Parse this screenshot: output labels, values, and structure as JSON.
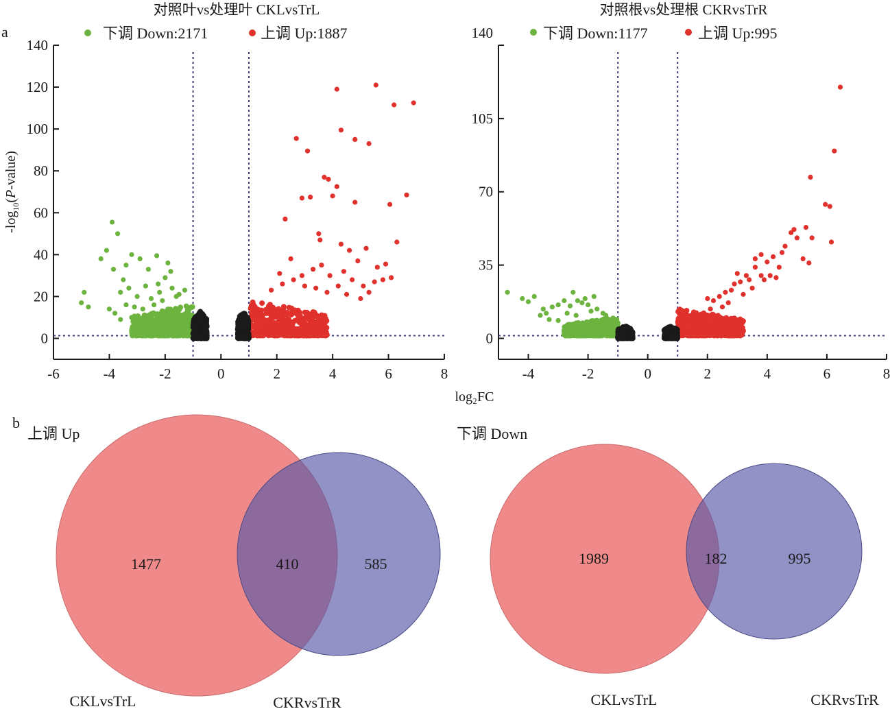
{
  "panel_labels": {
    "a": "a",
    "b": "b"
  },
  "shared_xlabel": "log₂FC",
  "shared_ylabel": "-log₁₀(P-value)",
  "colors": {
    "down": "#6db33f",
    "up": "#e0312d",
    "ns": "#1a1a1a",
    "threshold": "#3b3f7a",
    "venn_left": "#f08a8a",
    "venn_right": "#8e8cc0",
    "venn_overlap": "#885a9a"
  },
  "chart_data": [
    {
      "type": "scatter",
      "title": "对照叶vs处理叶 CKLvsTrL",
      "xlabel": "log₂FC",
      "ylabel": "-log₁₀(P-value)",
      "xlim": [
        -6,
        8
      ],
      "ylim": [
        -10,
        140
      ],
      "xticks": [
        -6,
        -4,
        -2,
        0,
        2,
        4,
        6,
        8
      ],
      "yticks": [
        0,
        20,
        40,
        60,
        80,
        100,
        120,
        140
      ],
      "thresholds": {
        "x": [
          -1,
          1
        ],
        "y": 1.3
      },
      "legend": [
        {
          "label": "下调 Down:2171",
          "series": "down"
        },
        {
          "label": "上调 Up:1887",
          "series": "up"
        }
      ],
      "legend_position": "top",
      "counts": {
        "down": 2171,
        "up": 1887
      },
      "series": [
        {
          "name": "down",
          "points": [
            [
              -4.9,
              22
            ],
            [
              -5,
              17
            ],
            [
              -4.75,
              15
            ],
            [
              -4.3,
              38
            ],
            [
              -4.1,
              42
            ],
            [
              -3.9,
              55.5
            ],
            [
              -3.7,
              50
            ],
            [
              -3.85,
              33
            ],
            [
              -3.4,
              35
            ],
            [
              -3.5,
              28
            ],
            [
              -3.2,
              40
            ],
            [
              -2.9,
              38
            ],
            [
              -2.6,
              33
            ],
            [
              -2.3,
              39.5
            ],
            [
              -2.25,
              26
            ],
            [
              -1.9,
              36
            ],
            [
              -1.8,
              32
            ],
            [
              -3.6,
              22
            ],
            [
              -3.3,
              24
            ],
            [
              -3.0,
              20
            ],
            [
              -2.7,
              25
            ],
            [
              -2.5,
              19
            ],
            [
              -2.2,
              22
            ],
            [
              -2.0,
              29
            ],
            [
              -1.75,
              24
            ],
            [
              -1.6,
              20
            ],
            [
              -3.8,
              12
            ],
            [
              -3.4,
              16
            ],
            [
              -3.1,
              15
            ],
            [
              -2.8,
              14
            ],
            [
              -4.0,
              14
            ],
            [
              -3.6,
              9
            ],
            [
              -3.2,
              10
            ],
            [
              -2.9,
              9
            ],
            [
              -2.6,
              11
            ],
            [
              -2.4,
              16
            ],
            [
              -2.1,
              18
            ],
            [
              -1.9,
              14
            ],
            [
              -1.5,
              21
            ],
            [
              -1.3,
              23
            ]
          ],
          "cloud": {
            "xmin": -3.2,
            "xmax": -1.0,
            "ymin": 1.3,
            "ymax": 16
          }
        },
        {
          "name": "up",
          "points": [
            [
              4.15,
              119
            ],
            [
              5.55,
              121
            ],
            [
              6.2,
              111.5
            ],
            [
              6.9,
              112.5
            ],
            [
              4.3,
              99.5
            ],
            [
              4.8,
              95
            ],
            [
              5.3,
              93
            ],
            [
              2.7,
              95.5
            ],
            [
              3.1,
              89.5
            ],
            [
              3.7,
              77
            ],
            [
              3.85,
              76
            ],
            [
              4.15,
              72.5
            ],
            [
              3.2,
              67.5
            ],
            [
              2.9,
              67
            ],
            [
              4.0,
              68
            ],
            [
              4.8,
              65
            ],
            [
              6.05,
              64
            ],
            [
              6.65,
              68.5
            ],
            [
              2.3,
              57
            ],
            [
              3.5,
              50
            ],
            [
              3.55,
              47
            ],
            [
              4.3,
              45
            ],
            [
              5.2,
              43
            ],
            [
              6.3,
              46
            ],
            [
              5.9,
              35.5
            ],
            [
              4.6,
              42
            ],
            [
              4.9,
              37
            ],
            [
              5.6,
              34
            ],
            [
              6.1,
              29
            ],
            [
              5.8,
              28
            ],
            [
              2.5,
              38
            ],
            [
              2.9,
              30
            ],
            [
              3.3,
              33
            ],
            [
              3.6,
              35
            ],
            [
              3.9,
              30
            ],
            [
              4.4,
              32
            ],
            [
              4.7,
              28
            ],
            [
              5.1,
              25
            ],
            [
              5.5,
              27
            ],
            [
              2.1,
              31
            ],
            [
              2.2,
              26
            ],
            [
              2.6,
              28
            ],
            [
              3.0,
              25
            ],
            [
              3.4,
              24
            ],
            [
              3.8,
              22
            ],
            [
              4.2,
              25
            ],
            [
              4.5,
              21
            ],
            [
              5.0,
              19
            ],
            [
              5.3,
              22
            ],
            [
              1.8,
              23
            ]
          ],
          "cloud": {
            "xmin": 1.0,
            "xmax": 3.8,
            "ymin": 1.3,
            "ymax": 18
          }
        },
        {
          "name": "ns",
          "clouds": [
            {
              "xmin": -1.0,
              "xmax": -0.5,
              "ymin": 0,
              "ymax": 13
            },
            {
              "xmin": 0.6,
              "xmax": 1.0,
              "ymin": 0,
              "ymax": 13
            }
          ]
        }
      ]
    },
    {
      "type": "scatter",
      "title": "对照根vs处理根 CKRvsTrR",
      "xlabel": "log₂FC",
      "ylabel": "",
      "xlim": [
        -5,
        8
      ],
      "ylim": [
        -10,
        140
      ],
      "xticks": [
        -4,
        -2,
        0,
        2,
        4,
        6,
        8
      ],
      "yticks": [
        0,
        35,
        70,
        105,
        140
      ],
      "thresholds": {
        "x": [
          -1,
          1
        ],
        "y": 1.3
      },
      "legend": [
        {
          "label": "下调 Down:1177",
          "series": "down"
        },
        {
          "label": "上调 Up:995",
          "series": "up"
        }
      ],
      "legend_position": "top",
      "counts": {
        "down": 1177,
        "up": 995
      },
      "series": [
        {
          "name": "down",
          "points": [
            [
              -4.7,
              22
            ],
            [
              -4.2,
              19
            ],
            [
              -4.0,
              17.5
            ],
            [
              -3.8,
              20
            ],
            [
              -3.5,
              14
            ],
            [
              -3.4,
              12
            ],
            [
              -3.2,
              15
            ],
            [
              -3.0,
              16
            ],
            [
              -2.8,
              18
            ],
            [
              -2.6,
              15.5
            ],
            [
              -2.5,
              22
            ],
            [
              -2.35,
              18
            ],
            [
              -2.2,
              17
            ],
            [
              -2.1,
              19
            ],
            [
              -2.0,
              16
            ],
            [
              -1.8,
              20
            ],
            [
              -1.7,
              14
            ],
            [
              -1.5,
              12
            ],
            [
              -1.4,
              11
            ],
            [
              -3.6,
              11
            ],
            [
              -3.3,
              9
            ],
            [
              -3.0,
              8.5
            ],
            [
              -2.7,
              12
            ],
            [
              -2.4,
              11
            ],
            [
              -1.9,
              13
            ]
          ],
          "cloud": {
            "xmin": -2.8,
            "xmax": -1.0,
            "ymin": 1.3,
            "ymax": 10
          }
        },
        {
          "name": "up",
          "points": [
            [
              6.45,
              120
            ],
            [
              6.25,
              89.5
            ],
            [
              5.45,
              77
            ],
            [
              5.95,
              64
            ],
            [
              6.1,
              63
            ],
            [
              5.3,
              53
            ],
            [
              4.9,
              52
            ],
            [
              5.0,
              48
            ],
            [
              4.8,
              50.5
            ],
            [
              5.5,
              48
            ],
            [
              6.15,
              46
            ],
            [
              4.6,
              44
            ],
            [
              4.5,
              41
            ],
            [
              4.2,
              39
            ],
            [
              4.0,
              36.5
            ],
            [
              3.8,
              40
            ],
            [
              3.6,
              38
            ],
            [
              3.6,
              34
            ],
            [
              3.3,
              30
            ],
            [
              3.4,
              28
            ],
            [
              3.1,
              27
            ],
            [
              2.9,
              26
            ],
            [
              2.8,
              23
            ],
            [
              2.6,
              22
            ],
            [
              2.4,
              20
            ],
            [
              2.2,
              18
            ],
            [
              2.0,
              19
            ],
            [
              3.0,
              31
            ],
            [
              3.8,
              30
            ],
            [
              4.4,
              34
            ],
            [
              2.5,
              15
            ],
            [
              2.7,
              17
            ],
            [
              3.2,
              21
            ],
            [
              3.5,
              24
            ],
            [
              3.9,
              28
            ],
            [
              4.1,
              30
            ],
            [
              4.3,
              29
            ],
            [
              5.2,
              38
            ],
            [
              5.4,
              36
            ],
            [
              2.1,
              14
            ]
          ],
          "cloud": {
            "xmin": 1.0,
            "xmax": 3.2,
            "ymin": 1.3,
            "ymax": 14
          }
        },
        {
          "name": "ns",
          "clouds": [
            {
              "xmin": -1.0,
              "xmax": -0.5,
              "ymin": 0,
              "ymax": 6
            },
            {
              "xmin": 0.55,
              "xmax": 1.0,
              "ymin": 0,
              "ymax": 6
            }
          ]
        }
      ]
    },
    {
      "type": "venn",
      "title": "上调 Up",
      "sets": [
        "CKLvsTrL",
        "CKRvsTrR"
      ],
      "values": {
        "left_only": 1477,
        "overlap": 410,
        "right_only": 585
      }
    },
    {
      "type": "venn",
      "title": "下调 Down",
      "sets": [
        "CKLvsTrL",
        "CKRvsTrR"
      ],
      "values": {
        "left_only": 1989,
        "overlap": 182,
        "right_only": 995
      }
    }
  ]
}
